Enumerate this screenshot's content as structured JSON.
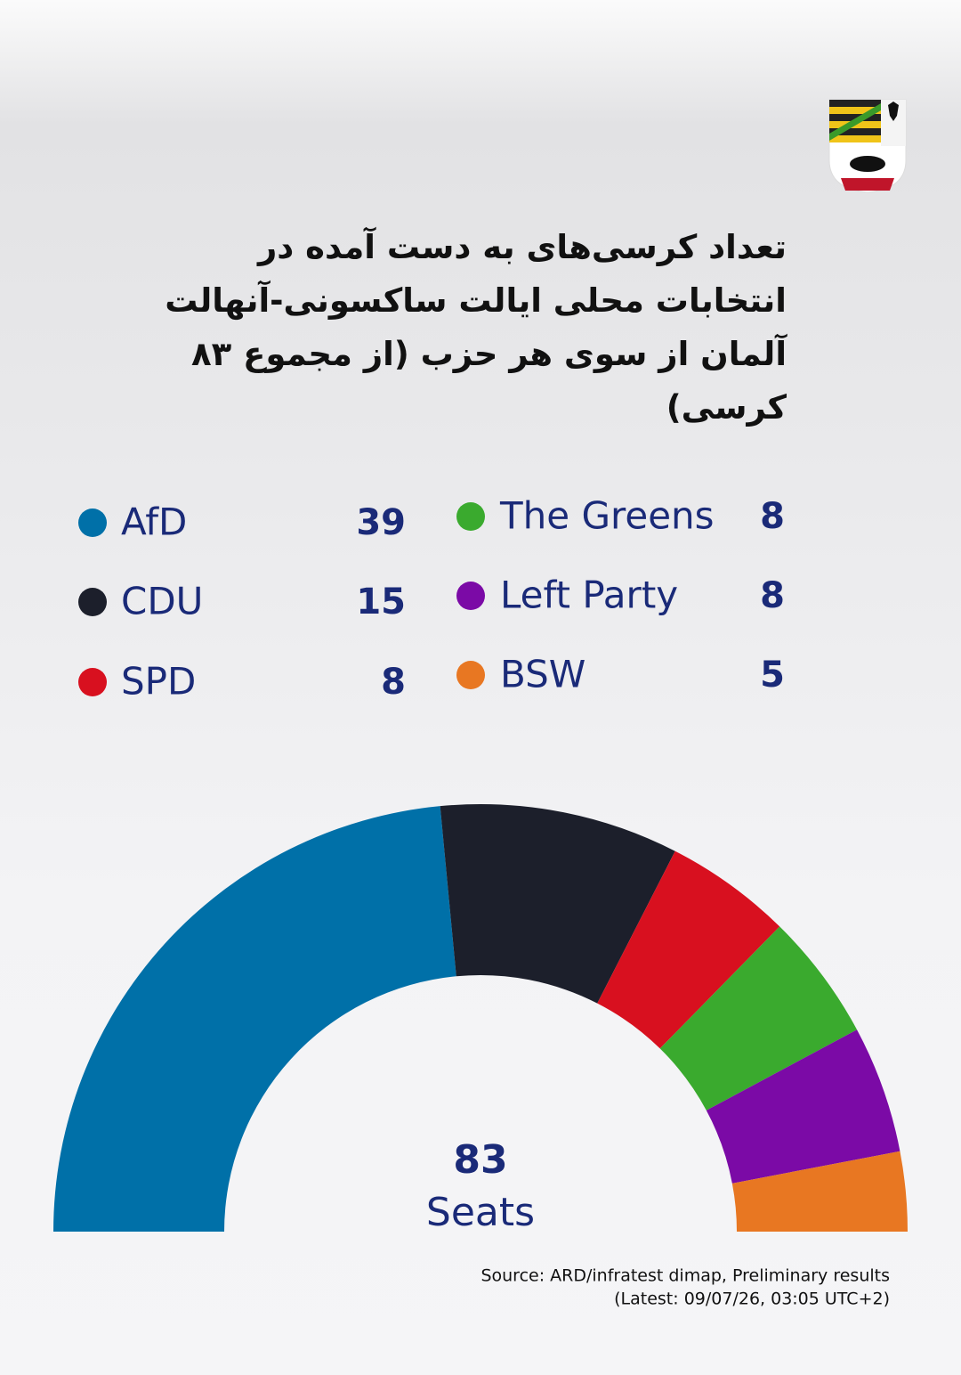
{
  "chart_data": {
    "type": "half-donut",
    "title": "تعداد کرسی‌های به دست آمده در انتخابات محلی ایالت ساکسونی-آنهالت آلمان از سوی هر حزب (از مجموع ۸۳ کرسی)",
    "categories": [
      "AfD",
      "CDU",
      "SPD",
      "The Greens",
      "Left Party",
      "BSW"
    ],
    "values": [
      39,
      15,
      8,
      8,
      8,
      5
    ],
    "colors": [
      "#0070a8",
      "#1c1f2b",
      "#d8101f",
      "#3aaa2e",
      "#7b0aa6",
      "#e87722"
    ],
    "total": 83,
    "total_label": "Seats",
    "source": [
      "Source: ARD/infratest dimap, Preliminary results",
      "(Latest: 09/07/26, 03:05 UTC+2)"
    ]
  }
}
